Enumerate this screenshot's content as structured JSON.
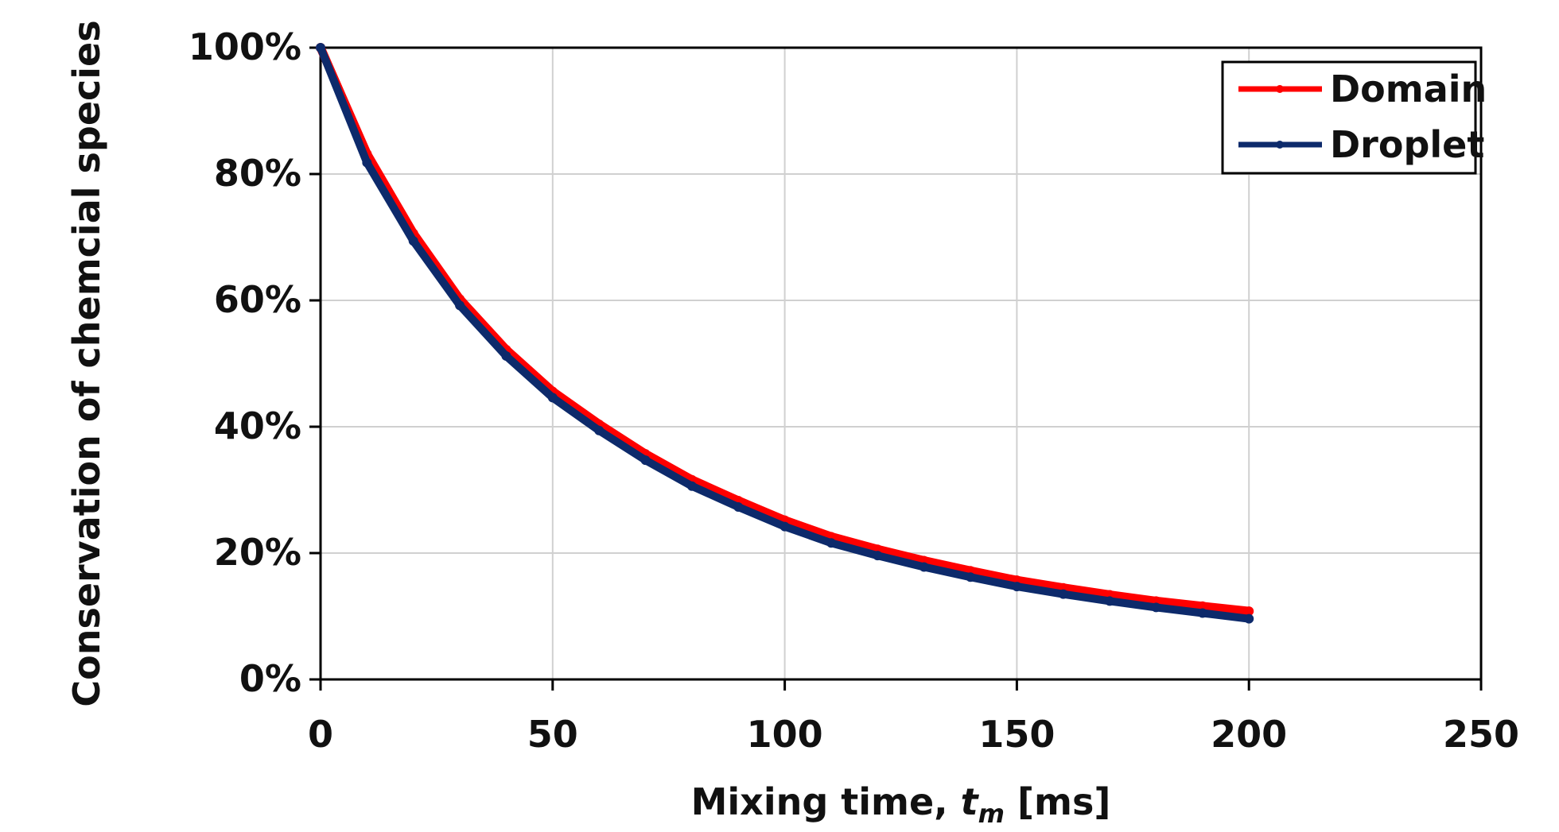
{
  "chart_data": {
    "type": "line",
    "xlabel_parts": [
      "Mixing time, ",
      "t",
      "m",
      " [ms]"
    ],
    "ylabel": "Conservation of chemcial species",
    "xlim": [
      0,
      250
    ],
    "ylim": [
      0,
      1
    ],
    "x_ticks": [
      "0",
      "50",
      "100",
      "150",
      "200",
      "250"
    ],
    "y_ticks": [
      "0%",
      "20%",
      "40%",
      "60%",
      "80%",
      "100%"
    ],
    "grid": true,
    "legend_position": "top-right",
    "series": [
      {
        "name": "Domain",
        "color": "#ff0000",
        "x": [
          0,
          10,
          20,
          30,
          40,
          50,
          60,
          70,
          80,
          90,
          100,
          110,
          120,
          130,
          140,
          150,
          160,
          170,
          180,
          190,
          200
        ],
        "y": [
          1.0,
          0.832,
          0.706,
          0.602,
          0.522,
          0.456,
          0.404,
          0.357,
          0.316,
          0.283,
          0.252,
          0.226,
          0.206,
          0.188,
          0.172,
          0.157,
          0.145,
          0.134,
          0.124,
          0.116,
          0.108
        ]
      },
      {
        "name": "Droplet",
        "color": "#0d2a6b",
        "x": [
          0,
          10,
          20,
          30,
          40,
          50,
          60,
          70,
          80,
          90,
          100,
          110,
          120,
          130,
          140,
          150,
          160,
          170,
          180,
          190,
          200
        ],
        "y": [
          1.0,
          0.818,
          0.694,
          0.592,
          0.512,
          0.446,
          0.394,
          0.347,
          0.306,
          0.273,
          0.242,
          0.216,
          0.196,
          0.178,
          0.162,
          0.147,
          0.135,
          0.124,
          0.114,
          0.105,
          0.096
        ]
      }
    ]
  }
}
